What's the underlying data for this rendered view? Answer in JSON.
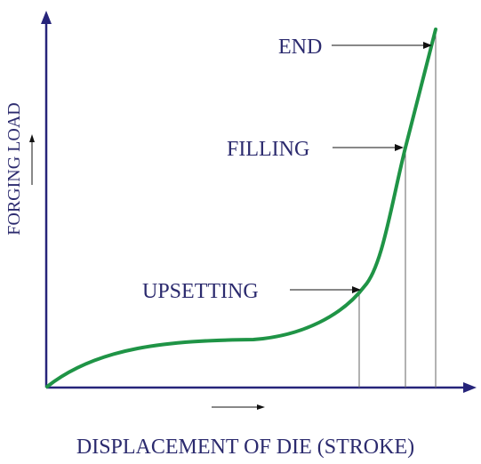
{
  "diagram": {
    "x_axis_label": "DISPLACEMENT OF DIE (STROKE)",
    "y_axis_label": "FORGING LOAD",
    "stages": {
      "upsetting": "UPSETTING",
      "filling": "FILLING",
      "end": "END"
    },
    "colors": {
      "text": "#2b2a6e",
      "axis": "#26247a",
      "curve": "#1f9446",
      "guide": "#666666"
    }
  }
}
